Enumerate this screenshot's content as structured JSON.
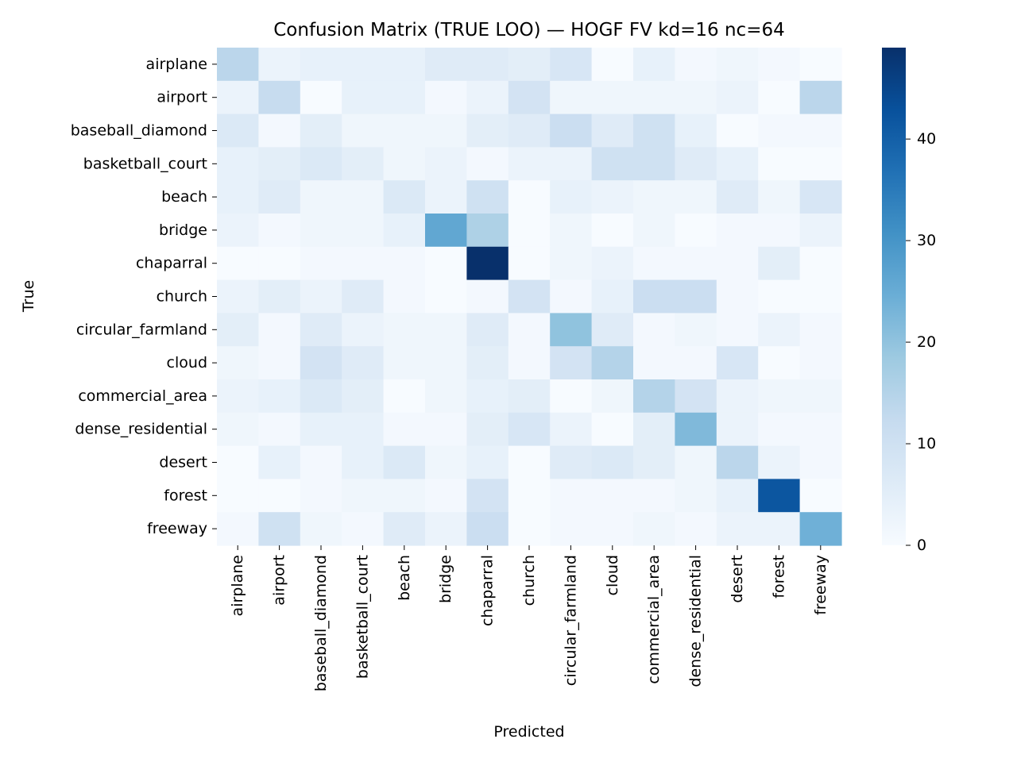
{
  "chart_data": {
    "type": "heatmap",
    "title": "Confusion Matrix (TRUE LOO) — HOGF FV kd=16 nc=64",
    "xlabel": "Predicted",
    "ylabel": "True",
    "rows": [
      "airplane",
      "airport",
      "baseball_diamond",
      "basketball_court",
      "beach",
      "bridge",
      "chaparral",
      "church",
      "circular_farmland",
      "cloud",
      "commercial_area",
      "dense_residential",
      "desert",
      "forest",
      "freeway"
    ],
    "columns": [
      "airplane",
      "airport",
      "baseball_diamond",
      "basketball_court",
      "beach",
      "bridge",
      "chaparral",
      "church",
      "circular_farmland",
      "cloud",
      "commercial_area",
      "dense_residential",
      "desert",
      "forest",
      "freeway"
    ],
    "values": [
      [
        14,
        3,
        4,
        4,
        4,
        6,
        6,
        5,
        8,
        0,
        4,
        1,
        2,
        1,
        0
      ],
      [
        3,
        12,
        0,
        4,
        4,
        1,
        3,
        9,
        2,
        2,
        2,
        2,
        3,
        0,
        14
      ],
      [
        7,
        1,
        5,
        2,
        2,
        2,
        5,
        6,
        11,
        6,
        10,
        4,
        0,
        1,
        1
      ],
      [
        4,
        5,
        7,
        5,
        2,
        3,
        1,
        3,
        3,
        10,
        10,
        6,
        4,
        0,
        0
      ],
      [
        4,
        6,
        2,
        2,
        7,
        3,
        10,
        0,
        4,
        3,
        2,
        2,
        6,
        2,
        8
      ],
      [
        3,
        1,
        2,
        2,
        4,
        26,
        16,
        0,
        2,
        0,
        2,
        0,
        1,
        1,
        3
      ],
      [
        0,
        0,
        1,
        1,
        1,
        0,
        49,
        0,
        2,
        3,
        1,
        1,
        1,
        5,
        0
      ],
      [
        3,
        5,
        3,
        6,
        1,
        0,
        1,
        9,
        1,
        4,
        11,
        11,
        1,
        0,
        0
      ],
      [
        5,
        1,
        6,
        3,
        2,
        2,
        6,
        1,
        20,
        6,
        1,
        2,
        1,
        3,
        1
      ],
      [
        2,
        1,
        9,
        6,
        2,
        2,
        5,
        1,
        9,
        15,
        1,
        1,
        8,
        0,
        1
      ],
      [
        3,
        4,
        7,
        5,
        0,
        2,
        4,
        5,
        0,
        2,
        15,
        9,
        3,
        2,
        2
      ],
      [
        2,
        1,
        4,
        4,
        1,
        1,
        5,
        8,
        3,
        0,
        5,
        22,
        3,
        1,
        1
      ],
      [
        0,
        4,
        1,
        4,
        7,
        2,
        4,
        0,
        6,
        7,
        5,
        2,
        14,
        3,
        1
      ],
      [
        0,
        0,
        1,
        2,
        2,
        1,
        9,
        0,
        1,
        1,
        1,
        2,
        4,
        42,
        0
      ],
      [
        1,
        10,
        2,
        1,
        6,
        3,
        11,
        0,
        1,
        1,
        2,
        1,
        3,
        3,
        24
      ]
    ],
    "colorbar": {
      "min": 0,
      "max": 49,
      "ticks": [
        0,
        10,
        20,
        30,
        40
      ]
    },
    "colormap": "Blues",
    "grid": false
  }
}
